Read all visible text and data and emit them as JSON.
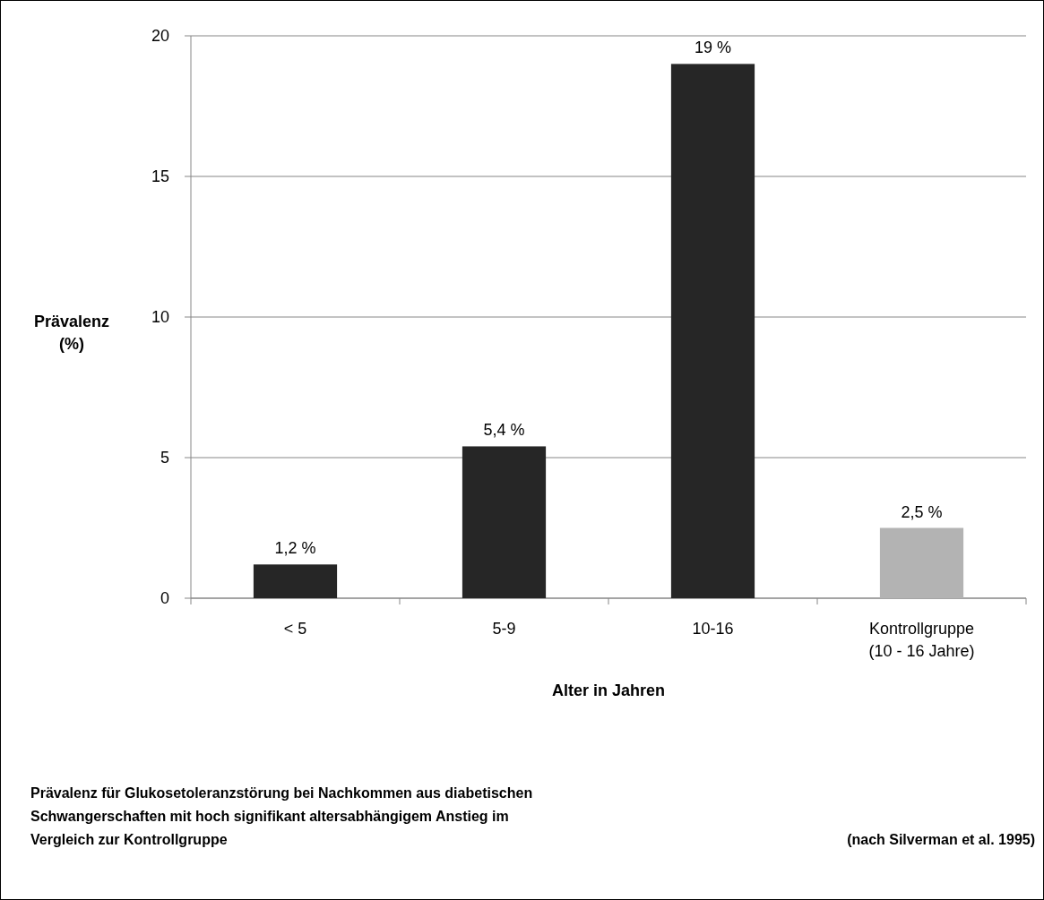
{
  "chart_data": {
    "type": "bar",
    "xlabel": "Alter in Jahren",
    "ylabel": "Prävalenz (%)",
    "categories": [
      "< 5",
      "5-9",
      "10-16",
      "Kontrollgruppe (10 - 16 Jahre)"
    ],
    "values": [
      1.2,
      5.4,
      19,
      2.5
    ],
    "colors": [
      "#262626",
      "#262626",
      "#262626",
      "#b3b3b3"
    ],
    "value_labels": [
      "1,2 %",
      "5,4 %",
      "19 %",
      "2,5 %"
    ],
    "ylim": [
      0,
      20
    ],
    "yticks": [
      0,
      5,
      10,
      15,
      20
    ],
    "grid": "y",
    "annotations": [
      "Prävalenz für Glukosetoleranzstörung bei Nachkommen aus diabetischen Schwangerschaften mit hoch signifikant altersabhängigem Anstieg im Vergleich zur Kontrollgruppe",
      "(nach Silverman et al. 1995)"
    ]
  }
}
